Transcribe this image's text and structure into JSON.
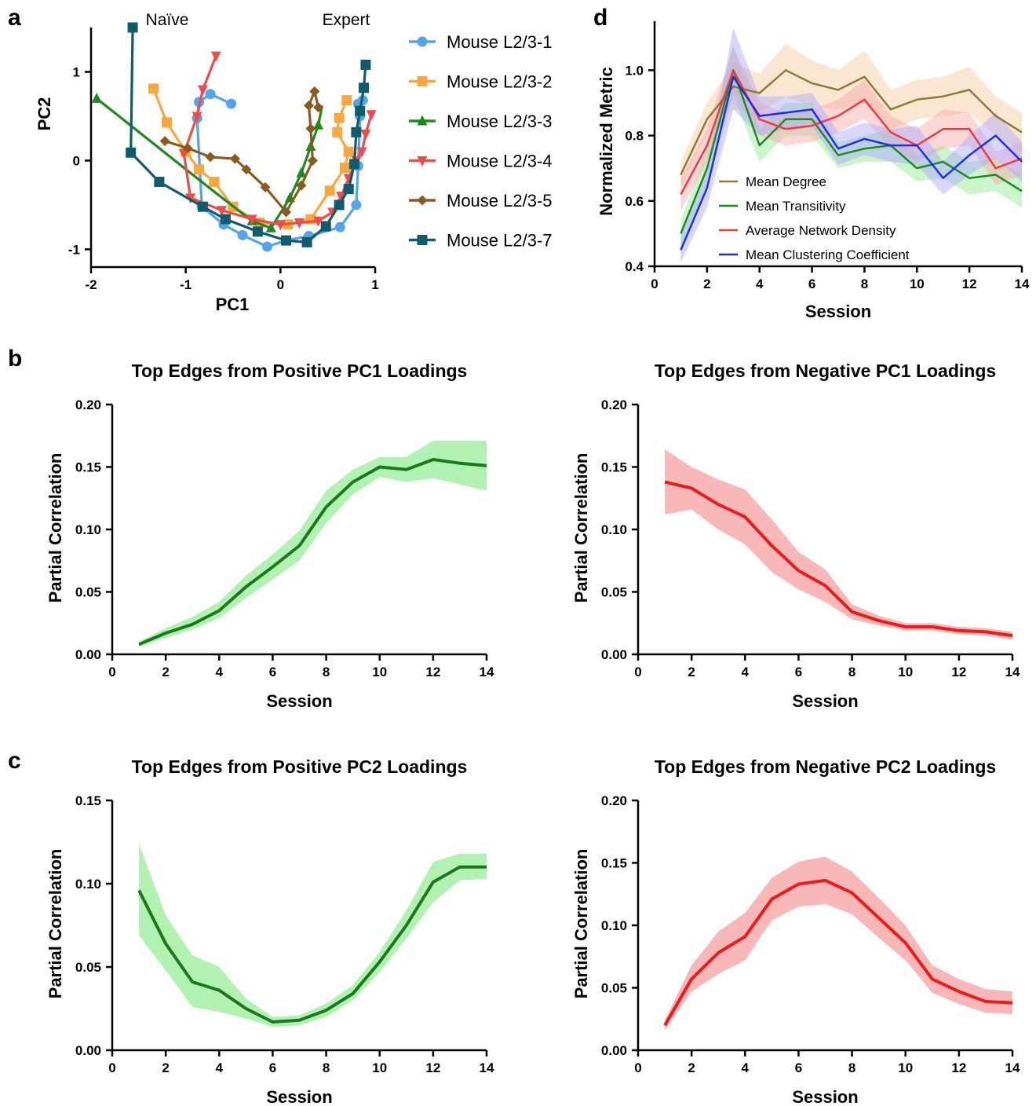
{
  "panels": {
    "a": "a",
    "b": "b",
    "c": "c",
    "d": "d"
  },
  "chart_data": [
    {
      "id": "a",
      "type": "line",
      "xlabel": "PC1",
      "ylabel": "PC2",
      "xlim": [
        -2,
        1
      ],
      "ylim": [
        -1.2,
        1.5
      ],
      "xticks": [
        -2,
        -1,
        0,
        1
      ],
      "yticks": [
        -1,
        0,
        1
      ],
      "xtick_labels": [
        "-2",
        "-1",
        "0",
        "1"
      ],
      "ytick_labels": [
        "-1",
        "0",
        "1"
      ],
      "annotations": [
        "Naïve",
        "Expert"
      ],
      "legend_position": "right",
      "series": [
        {
          "name": "Mouse L2/3-1",
          "color": "#55a3e8",
          "marker": "circle",
          "x": [
            -0.52,
            -0.74,
            -0.86,
            -0.88,
            -0.83,
            -0.6,
            -0.4,
            -0.14,
            0.06,
            0.3,
            0.63,
            0.8,
            0.82,
            0.84,
            0.87,
            0.82
          ],
          "y": [
            0.64,
            0.75,
            0.66,
            0.48,
            -0.52,
            -0.72,
            -0.84,
            -0.97,
            -0.9,
            -0.85,
            -0.75,
            -0.5,
            -0.06,
            0.5,
            0.68,
            0.64
          ]
        },
        {
          "name": "Mouse L2/3-2",
          "color": "#f9a73e",
          "marker": "square",
          "x": [
            -1.34,
            -1.2,
            -1.0,
            -0.86,
            -0.7,
            -0.5,
            -0.22,
            0.08,
            0.32,
            0.52,
            0.68,
            0.72,
            0.6,
            0.62,
            0.7
          ],
          "y": [
            0.81,
            0.43,
            0.1,
            -0.1,
            -0.24,
            -0.52,
            -0.7,
            -0.72,
            -0.66,
            -0.34,
            -0.08,
            0.1,
            0.32,
            0.48,
            0.68
          ]
        },
        {
          "name": "Mouse L2/3-3",
          "color": "#1e8a1e",
          "marker": "triangle-up",
          "x": [
            -1.94,
            -0.76,
            -0.3,
            -0.1,
            0.1,
            0.22,
            0.32,
            0.4,
            0.44
          ],
          "y": [
            0.7,
            -0.3,
            -0.68,
            -0.76,
            -0.42,
            -0.14,
            0.16,
            0.4,
            0.62
          ],
          "triangle_markers": [
            0,
            2,
            3,
            4,
            5,
            6,
            7
          ]
        },
        {
          "name": "Mouse L2/3-4",
          "color": "#ee4b4b",
          "marker": "triangle-down",
          "x": [
            -0.68,
            -0.82,
            -0.88,
            -1.02,
            -0.95,
            -0.62,
            -0.3,
            0.0,
            0.2,
            0.4,
            0.55,
            0.64,
            0.72,
            0.8,
            0.86,
            0.9,
            0.96
          ],
          "y": [
            1.18,
            0.8,
            0.5,
            0.08,
            -0.42,
            -0.56,
            -0.66,
            -0.72,
            -0.7,
            -0.68,
            -0.58,
            -0.4,
            -0.2,
            0.0,
            0.1,
            0.3,
            0.52
          ]
        },
        {
          "name": "Mouse L2/3-5",
          "color": "#8b5a1e",
          "marker": "diamond",
          "x": [
            -1.22,
            -0.98,
            -0.74,
            -0.48,
            -0.36,
            -0.16,
            0.06,
            0.22,
            0.34,
            0.32,
            0.3,
            0.36,
            0.4
          ],
          "y": [
            0.22,
            0.14,
            0.04,
            0.02,
            -0.1,
            -0.3,
            -0.58,
            -0.28,
            0.0,
            0.36,
            0.62,
            0.78,
            0.6
          ]
        },
        {
          "name": "Mouse L2/3-7",
          "color": "#0e5c6e",
          "marker": "square",
          "x": [
            -1.56,
            -1.58,
            -1.28,
            -0.82,
            -0.58,
            -0.24,
            0.06,
            0.28,
            0.48,
            0.62,
            0.72,
            0.78,
            0.8,
            0.84,
            0.88,
            0.9
          ],
          "y": [
            1.5,
            0.09,
            -0.24,
            -0.52,
            -0.66,
            -0.8,
            -0.9,
            -0.92,
            -0.74,
            -0.5,
            -0.32,
            -0.04,
            0.32,
            0.56,
            0.82,
            1.08
          ]
        }
      ]
    },
    {
      "id": "d",
      "type": "line",
      "xlabel": "Session",
      "ylabel": "Normalized Metric",
      "xlim": [
        0,
        14
      ],
      "ylim": [
        0.4,
        1.15
      ],
      "xticks": [
        0,
        2,
        4,
        6,
        8,
        10,
        12,
        14
      ],
      "yticks": [
        0.4,
        0.6,
        0.8,
        1.0
      ],
      "xtick_labels": [
        "0",
        "2",
        "4",
        "6",
        "8",
        "10",
        "12",
        "14"
      ],
      "ytick_labels": [
        "0.4",
        "0.6",
        "0.8",
        "1.0"
      ],
      "legend_position": "lower-left",
      "x": [
        1,
        2,
        3,
        4,
        5,
        6,
        7,
        8,
        9,
        10,
        11,
        12,
        13,
        14
      ],
      "series": [
        {
          "name": "Mean Degree",
          "color": "#8f7a36",
          "band_color": "#f7c79a",
          "values": [
            0.68,
            0.85,
            0.95,
            0.93,
            1.0,
            0.96,
            0.94,
            0.98,
            0.88,
            0.91,
            0.92,
            0.94,
            0.86,
            0.81
          ],
          "lower": [
            0.64,
            0.8,
            0.88,
            0.87,
            0.92,
            0.89,
            0.88,
            0.9,
            0.82,
            0.85,
            0.86,
            0.87,
            0.8,
            0.75
          ],
          "upper": [
            0.72,
            0.9,
            1.02,
            0.99,
            1.08,
            1.03,
            1.0,
            1.06,
            0.94,
            0.97,
            0.98,
            1.01,
            0.92,
            0.87
          ]
        },
        {
          "name": "Mean Transitivity",
          "color": "#1e8a1e",
          "band_color": "#8fe88f",
          "values": [
            0.5,
            0.7,
            1.0,
            0.77,
            0.85,
            0.85,
            0.74,
            0.76,
            0.77,
            0.7,
            0.72,
            0.67,
            0.68,
            0.63
          ],
          "lower": [
            0.46,
            0.64,
            0.92,
            0.72,
            0.8,
            0.8,
            0.7,
            0.72,
            0.72,
            0.66,
            0.67,
            0.62,
            0.63,
            0.58
          ],
          "upper": [
            0.54,
            0.76,
            1.08,
            0.82,
            0.9,
            0.9,
            0.78,
            0.8,
            0.82,
            0.74,
            0.77,
            0.72,
            0.73,
            0.68
          ]
        },
        {
          "name": "Average Network Density",
          "color": "#ee3b3b",
          "band_color": "#f7a7a7",
          "values": [
            0.62,
            0.77,
            1.0,
            0.85,
            0.82,
            0.83,
            0.86,
            0.91,
            0.81,
            0.77,
            0.82,
            0.82,
            0.7,
            0.73
          ],
          "lower": [
            0.57,
            0.72,
            0.93,
            0.8,
            0.77,
            0.78,
            0.81,
            0.85,
            0.76,
            0.72,
            0.76,
            0.77,
            0.65,
            0.68
          ],
          "upper": [
            0.67,
            0.82,
            1.07,
            0.9,
            0.87,
            0.88,
            0.91,
            0.97,
            0.86,
            0.82,
            0.88,
            0.87,
            0.75,
            0.78
          ]
        },
        {
          "name": "Mean Clustering Coefficient",
          "color": "#1e2ee8",
          "band_color": "#a7a7ff",
          "values": [
            0.45,
            0.64,
            0.98,
            0.86,
            0.87,
            0.88,
            0.76,
            0.79,
            0.77,
            0.77,
            0.67,
            0.74,
            0.8,
            0.72
          ],
          "lower": [
            0.41,
            0.58,
            0.88,
            0.8,
            0.82,
            0.83,
            0.71,
            0.74,
            0.72,
            0.71,
            0.62,
            0.68,
            0.73,
            0.66
          ],
          "upper": [
            0.49,
            0.7,
            1.13,
            0.92,
            0.92,
            0.93,
            0.81,
            0.84,
            0.82,
            0.83,
            0.72,
            0.8,
            0.87,
            0.78
          ]
        }
      ]
    },
    {
      "id": "b-left",
      "type": "line",
      "title": "Top Edges from Positive PC1 Loadings",
      "xlabel": "Session",
      "ylabel": "Partial Correlation",
      "xlim": [
        0,
        14
      ],
      "ylim": [
        0,
        0.2
      ],
      "xticks": [
        0,
        2,
        4,
        6,
        8,
        10,
        12,
        14
      ],
      "yticks": [
        0,
        0.05,
        0.1,
        0.15,
        0.2
      ],
      "xtick_labels": [
        "0",
        "2",
        "4",
        "6",
        "8",
        "10",
        "12",
        "14"
      ],
      "ytick_labels": [
        "0.00",
        "0.05",
        "0.10",
        "0.15",
        "0.20"
      ],
      "x": [
        1,
        2,
        3,
        4,
        5,
        6,
        7,
        8,
        9,
        10,
        11,
        12,
        13,
        14
      ],
      "series": [
        {
          "color": "#1a7a1a",
          "band_color": "#a8f0a8",
          "values": [
            0.008,
            0.017,
            0.024,
            0.035,
            0.054,
            0.07,
            0.087,
            0.118,
            0.138,
            0.15,
            0.148,
            0.156,
            0.153,
            0.151
          ],
          "lower": [
            0.006,
            0.013,
            0.02,
            0.029,
            0.045,
            0.06,
            0.075,
            0.105,
            0.128,
            0.142,
            0.138,
            0.141,
            0.136,
            0.131
          ],
          "upper": [
            0.01,
            0.021,
            0.03,
            0.042,
            0.063,
            0.08,
            0.099,
            0.131,
            0.148,
            0.158,
            0.158,
            0.171,
            0.171,
            0.171
          ]
        }
      ]
    },
    {
      "id": "b-right",
      "type": "line",
      "title": "Top Edges from Negative PC1 Loadings",
      "xlabel": "Session",
      "ylabel": "Partial Correlation",
      "xlim": [
        0,
        14
      ],
      "ylim": [
        0,
        0.2
      ],
      "xticks": [
        0,
        2,
        4,
        6,
        8,
        10,
        12,
        14
      ],
      "yticks": [
        0,
        0.05,
        0.1,
        0.15,
        0.2
      ],
      "xtick_labels": [
        "0",
        "2",
        "4",
        "6",
        "8",
        "10",
        "12",
        "14"
      ],
      "ytick_labels": [
        "0.00",
        "0.05",
        "0.10",
        "0.15",
        "0.20"
      ],
      "x": [
        1,
        2,
        3,
        4,
        5,
        6,
        7,
        8,
        9,
        10,
        11,
        12,
        13,
        14
      ],
      "series": [
        {
          "color": "#ee1a1a",
          "band_color": "#f7b0b0",
          "values": [
            0.138,
            0.133,
            0.12,
            0.11,
            0.087,
            0.067,
            0.055,
            0.034,
            0.027,
            0.022,
            0.022,
            0.019,
            0.018,
            0.015
          ],
          "lower": [
            0.112,
            0.116,
            0.1,
            0.088,
            0.066,
            0.052,
            0.042,
            0.028,
            0.023,
            0.019,
            0.019,
            0.016,
            0.015,
            0.012
          ],
          "upper": [
            0.164,
            0.15,
            0.14,
            0.132,
            0.108,
            0.082,
            0.068,
            0.04,
            0.031,
            0.025,
            0.025,
            0.022,
            0.021,
            0.018
          ]
        }
      ]
    },
    {
      "id": "c-left",
      "type": "line",
      "title": "Top Edges from Positive PC2 Loadings",
      "xlabel": "Session",
      "ylabel": "Partial Correlation",
      "xlim": [
        0,
        14
      ],
      "ylim": [
        0,
        0.15
      ],
      "xticks": [
        0,
        2,
        4,
        6,
        8,
        10,
        12,
        14
      ],
      "yticks": [
        0,
        0.05,
        0.1,
        0.15
      ],
      "xtick_labels": [
        "0",
        "2",
        "4",
        "6",
        "8",
        "10",
        "12",
        "14"
      ],
      "ytick_labels": [
        "0.00",
        "0.05",
        "0.10",
        "0.15"
      ],
      "x": [
        1,
        2,
        3,
        4,
        5,
        6,
        7,
        8,
        9,
        10,
        11,
        12,
        13,
        14
      ],
      "series": [
        {
          "color": "#1a7a1a",
          "band_color": "#a8f0a8",
          "values": [
            0.096,
            0.064,
            0.041,
            0.036,
            0.025,
            0.017,
            0.018,
            0.024,
            0.034,
            0.053,
            0.075,
            0.101,
            0.11,
            0.11
          ],
          "lower": [
            0.069,
            0.048,
            0.026,
            0.023,
            0.019,
            0.014,
            0.015,
            0.02,
            0.03,
            0.047,
            0.067,
            0.089,
            0.102,
            0.103
          ],
          "upper": [
            0.124,
            0.081,
            0.057,
            0.05,
            0.031,
            0.02,
            0.021,
            0.028,
            0.039,
            0.059,
            0.084,
            0.113,
            0.118,
            0.118
          ]
        }
      ]
    },
    {
      "id": "c-right",
      "type": "line",
      "title": "Top Edges from Negative PC2 Loadings",
      "xlabel": "Session",
      "ylabel": "Partial Correlation",
      "xlim": [
        0,
        14
      ],
      "ylim": [
        0,
        0.2
      ],
      "xticks": [
        0,
        2,
        4,
        6,
        8,
        10,
        12,
        14
      ],
      "yticks": [
        0,
        0.05,
        0.1,
        0.15,
        0.2
      ],
      "xtick_labels": [
        "0",
        "2",
        "4",
        "6",
        "8",
        "10",
        "12",
        "14"
      ],
      "ytick_labels": [
        "0.00",
        "0.05",
        "0.10",
        "0.15",
        "0.20"
      ],
      "x": [
        1,
        2,
        3,
        4,
        5,
        6,
        7,
        8,
        9,
        10,
        11,
        12,
        13,
        14
      ],
      "series": [
        {
          "color": "#ee1a1a",
          "band_color": "#f7b0b0",
          "values": [
            0.02,
            0.057,
            0.078,
            0.091,
            0.121,
            0.133,
            0.136,
            0.126,
            0.106,
            0.086,
            0.057,
            0.047,
            0.039,
            0.038
          ],
          "lower": [
            0.016,
            0.047,
            0.061,
            0.072,
            0.104,
            0.115,
            0.117,
            0.109,
            0.09,
            0.072,
            0.046,
            0.037,
            0.03,
            0.029
          ],
          "upper": [
            0.024,
            0.068,
            0.095,
            0.11,
            0.138,
            0.151,
            0.155,
            0.143,
            0.122,
            0.1,
            0.068,
            0.057,
            0.049,
            0.047
          ]
        }
      ]
    }
  ]
}
